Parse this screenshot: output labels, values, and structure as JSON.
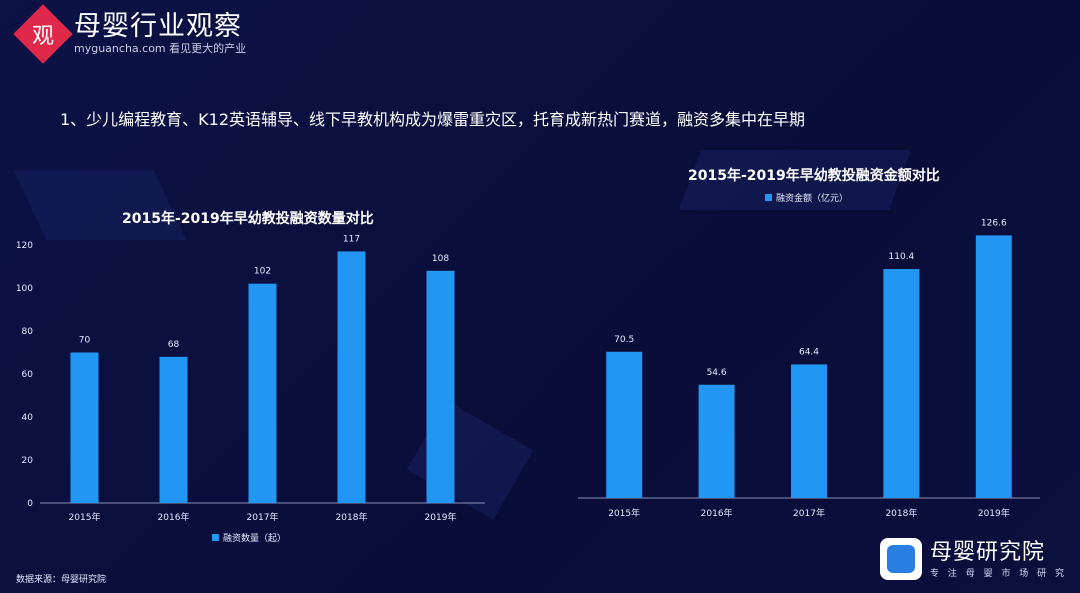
{
  "header": {
    "logo_mark": "观",
    "logo_title": "母婴行业观察",
    "logo_subtitle": "myguancha.com 看见更大的产业"
  },
  "headline": "1、少儿编程教育、K12英语辅导、线下早教机构成为爆雷重灾区，托育成新热门赛道，融资多集中在早期",
  "source": "数据来源：母婴研究院",
  "brand": {
    "title": "母婴研究院",
    "subtitle": "专 注 母 婴 市 场 研 究"
  },
  "colors": {
    "background": "#0b0f3d",
    "bar": "#2196f3",
    "axis": "#8a8fb8"
  },
  "chart_data": [
    {
      "type": "bar",
      "title": "2015年-2019年早幼教投融资数量对比",
      "categories": [
        "2015年",
        "2016年",
        "2017年",
        "2018年",
        "2019年"
      ],
      "series": [
        {
          "name": "融资数量（起）",
          "values": [
            70,
            68,
            102,
            117,
            108
          ]
        }
      ],
      "ylim": [
        0,
        120
      ],
      "yticks": [
        0,
        20,
        40,
        60,
        80,
        100,
        120
      ],
      "legend": "bottom",
      "grid": false
    },
    {
      "type": "bar",
      "title": "2015年-2019年早幼教投融资金额对比",
      "categories": [
        "2015年",
        "2016年",
        "2017年",
        "2018年",
        "2019年"
      ],
      "series": [
        {
          "name": "融资金额（亿元）",
          "values": [
            70.5,
            54.6,
            64.4,
            110.4,
            126.6
          ]
        }
      ],
      "ylim": [
        0,
        135
      ],
      "legend": "top",
      "grid": false
    }
  ]
}
